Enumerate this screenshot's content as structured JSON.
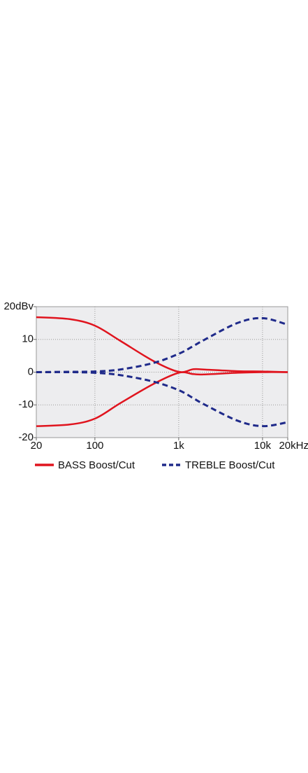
{
  "chart_data": {
    "type": "line",
    "x": [
      20,
      50,
      100,
      200,
      500,
      1000,
      1500,
      2000,
      5000,
      10000,
      20000
    ],
    "series": [
      {
        "name": "BASS Boost/Cut",
        "color": "#e0141e",
        "dashed": false,
        "curves": [
          [
            16.8,
            16.2,
            14.2,
            9.6,
            3.4,
            0.1,
            0.9,
            0.8,
            0.3,
            0.2,
            0
          ],
          [
            -16.5,
            -16,
            -14.2,
            -9.5,
            -3.6,
            -0.2,
            -0.6,
            -0.7,
            -0.2,
            0,
            0
          ]
        ]
      },
      {
        "name": "TREBLE Boost/Cut",
        "color": "#1f2a8a",
        "dashed": true,
        "curves": [
          [
            0,
            0.1,
            0.2,
            0.8,
            2.8,
            5.6,
            8,
            9.8,
            15,
            16.5,
            14.5
          ],
          [
            0,
            0,
            -0.2,
            -0.9,
            -2.9,
            -5.5,
            -8,
            -9.8,
            -14.8,
            -16.5,
            -15.3
          ]
        ]
      }
    ],
    "xlog": true,
    "xlim": [
      20,
      20000
    ],
    "xticks": [
      20,
      100,
      {
        "value": 1000,
        "label": "1k"
      },
      {
        "value": 10000,
        "label": "10k"
      },
      {
        "value": 20000,
        "label": "20kHz"
      }
    ],
    "ylim": [
      -20,
      20
    ],
    "yticks": [
      {
        "value": 20,
        "label": "20dBv"
      },
      10,
      0,
      -10,
      -20
    ],
    "grid": true
  }
}
